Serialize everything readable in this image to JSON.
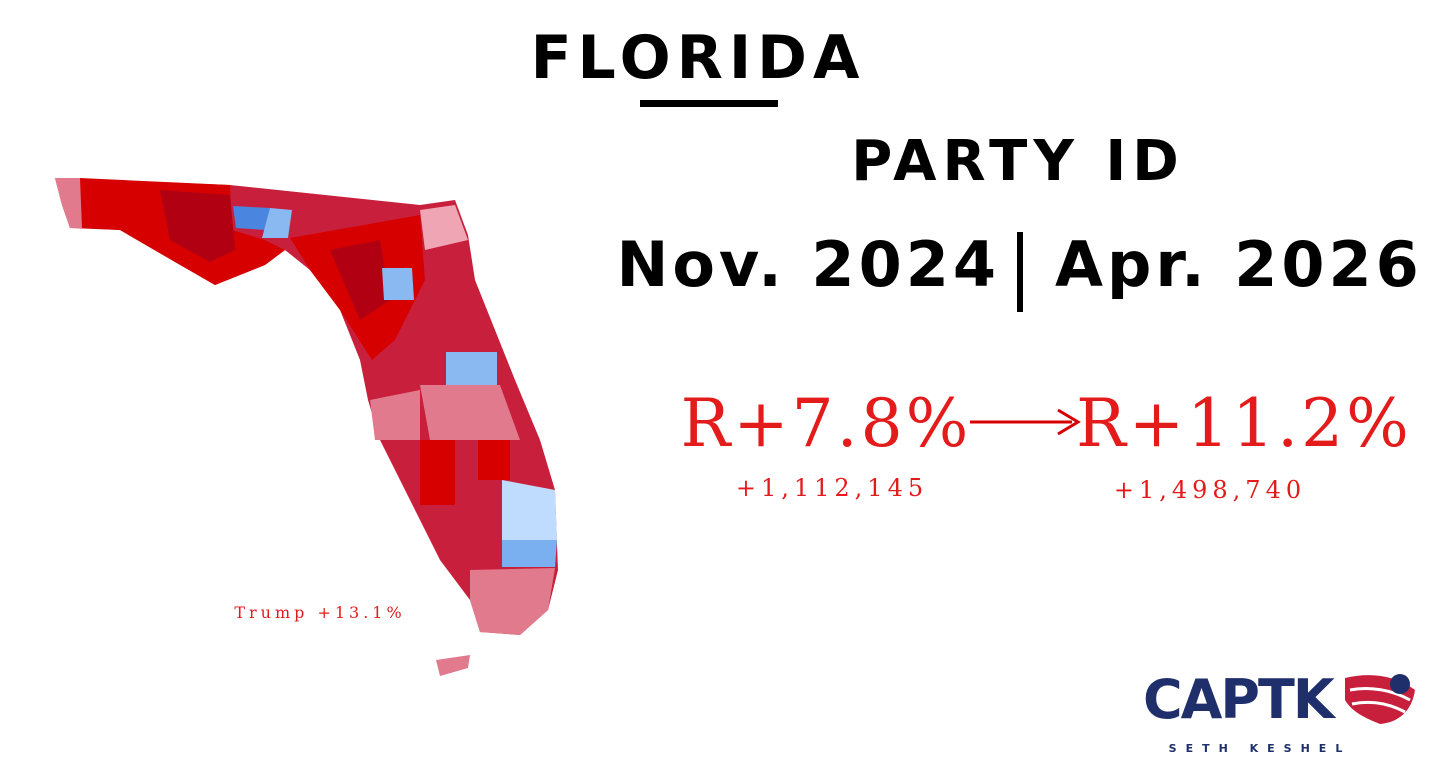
{
  "header": {
    "title": "FLORIDA",
    "subtitle": "PARTY ID",
    "period_start": "Nov. 2024",
    "period_end": "Apr. 2026"
  },
  "stats": [
    {
      "margin": "R+7.8%",
      "net": "+1,112,145"
    },
    {
      "margin": "R+11.2%",
      "net": "+1,498,740"
    }
  ],
  "map": {
    "label": "Trump +13.1%"
  },
  "logo": {
    "name": "CAPTK",
    "tagline": "SETH KESHEL"
  }
}
